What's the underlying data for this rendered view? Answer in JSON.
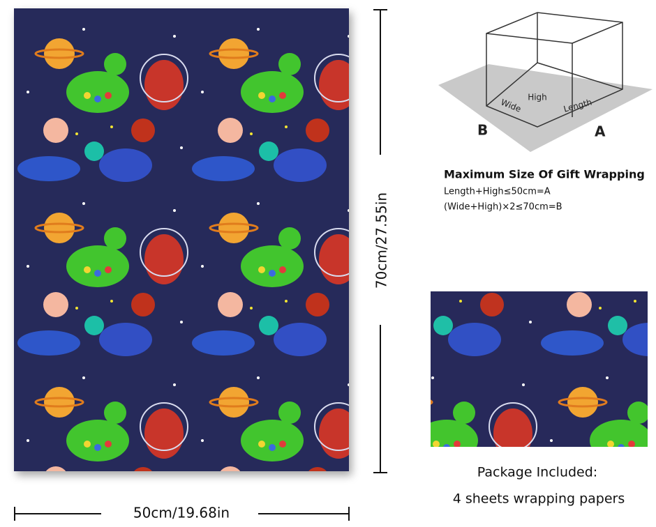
{
  "dimensions": {
    "height_label": "70cm/27.55in",
    "width_label": "50cm/19.68in"
  },
  "box_diagram": {
    "corner_b": "B",
    "corner_a": "A",
    "wide": "Wide",
    "high": "High",
    "length": "Length"
  },
  "max_size": {
    "title": "Maximum Size Of Gift Wrapping",
    "lines": [
      "Length+High≤50cm=A",
      "(Wide+High)×2≤70cm=B"
    ]
  },
  "package": {
    "title": "Package Included:",
    "content": "4 sheets wrapping papers"
  }
}
